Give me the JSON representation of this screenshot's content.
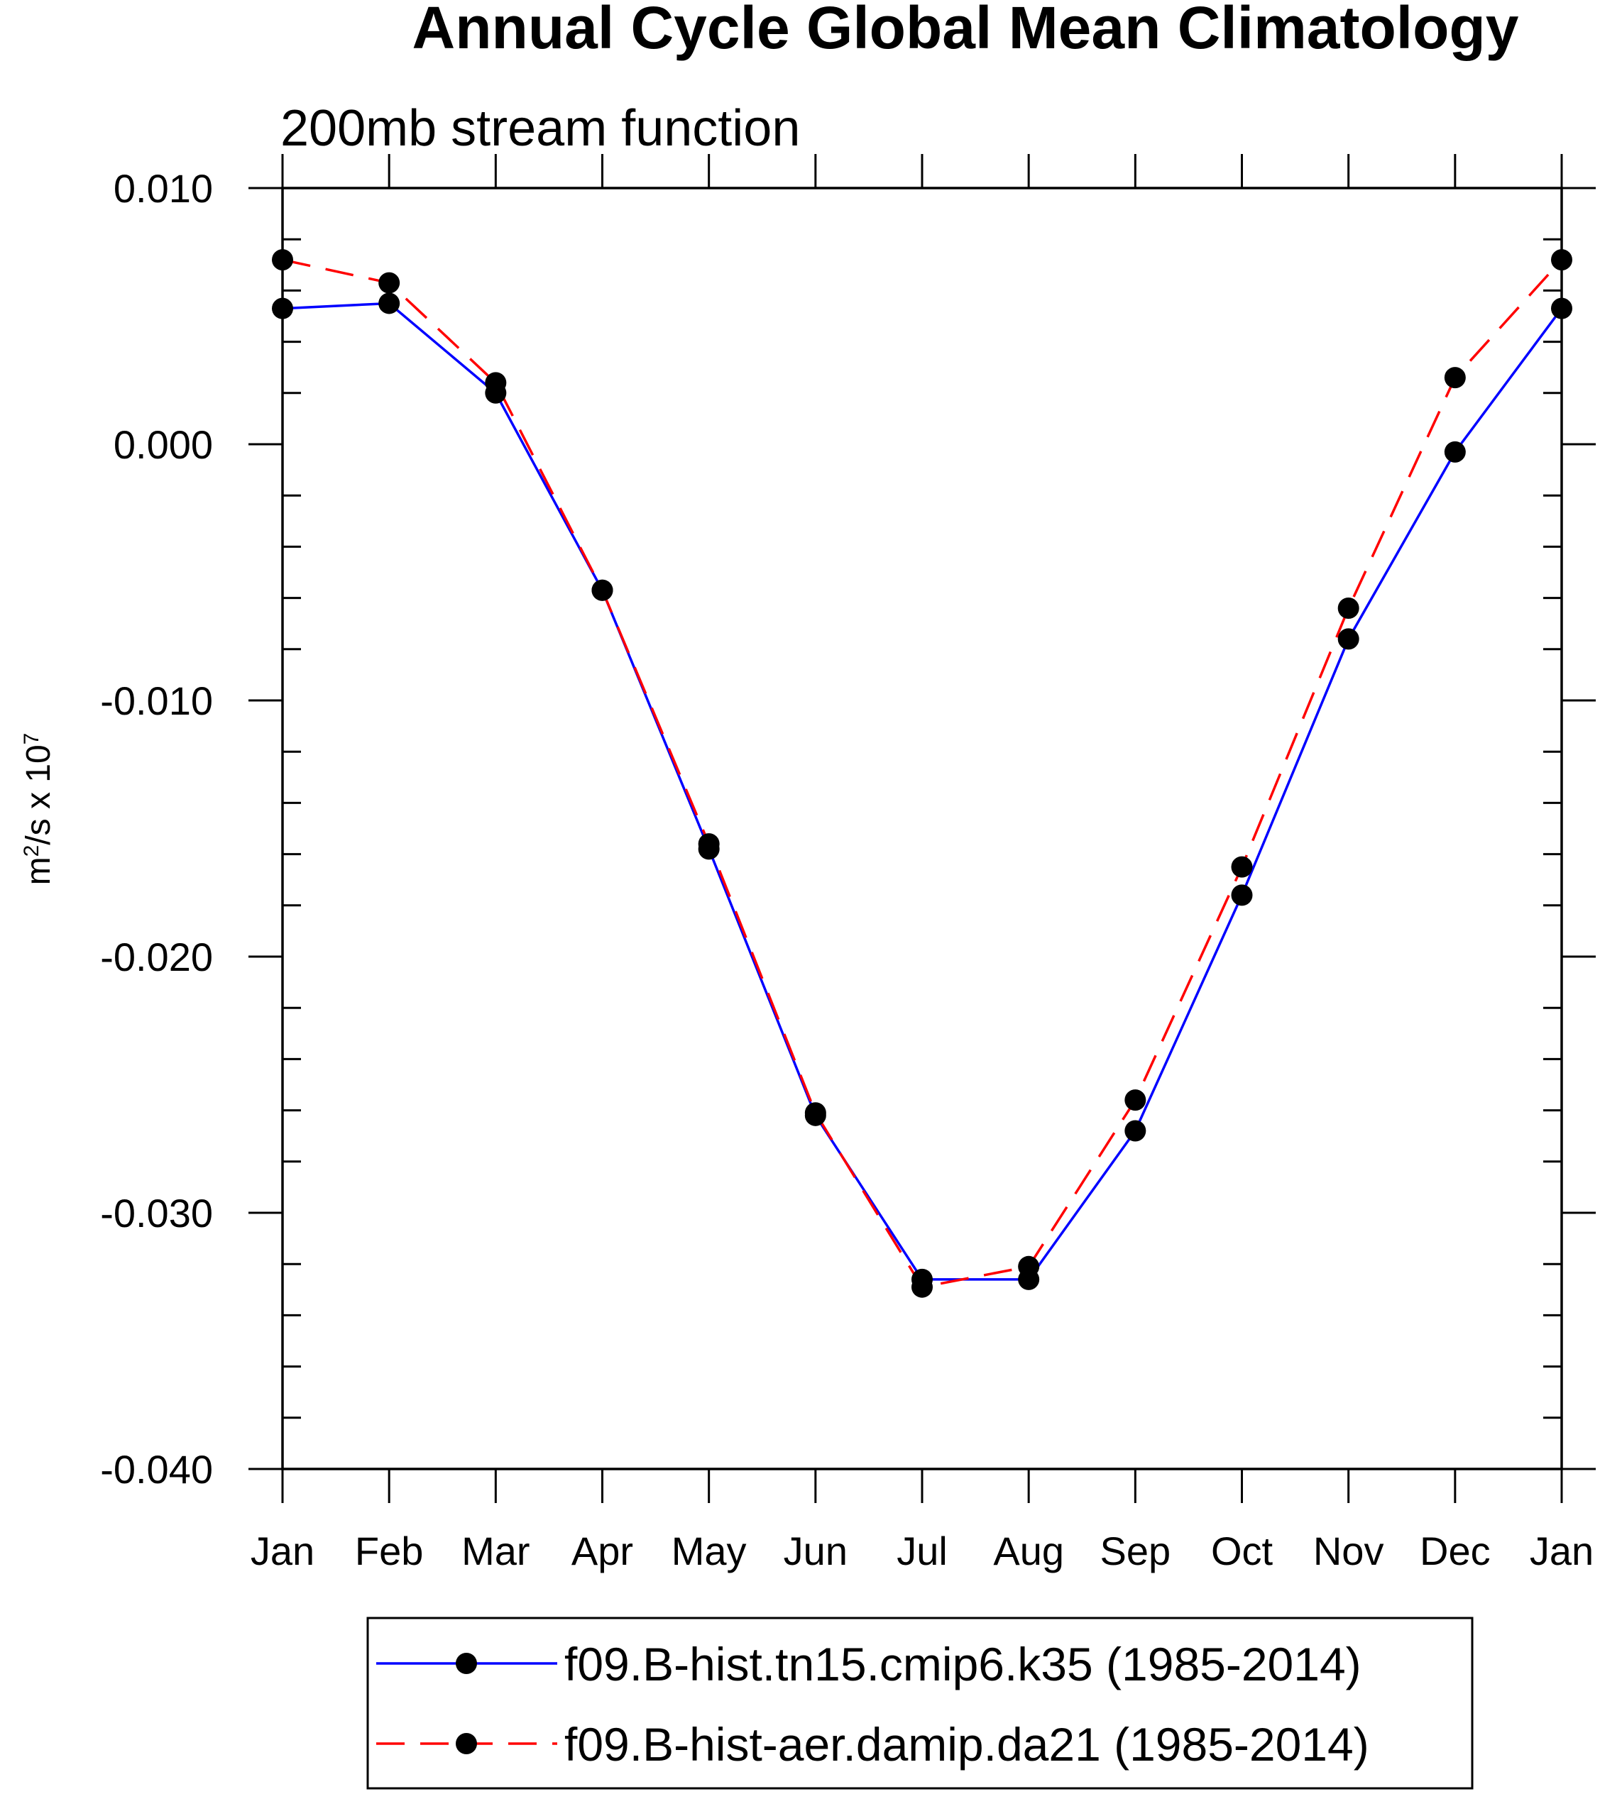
{
  "chart_data": {
    "type": "line",
    "title": "Annual Cycle Global Mean Climatology",
    "subtitle": "200mb stream function",
    "xlabel": "",
    "ylabel": {
      "base": "m",
      "sup1": "2",
      "mid": "/s x 10",
      "sup2": "7"
    },
    "categories": [
      "Jan",
      "Feb",
      "Mar",
      "Apr",
      "May",
      "Jun",
      "Jul",
      "Aug",
      "Sep",
      "Oct",
      "Nov",
      "Dec",
      "Jan"
    ],
    "ylim": [
      -0.04,
      0.01
    ],
    "yticks": [
      {
        "value": 0.01,
        "label": "0.010"
      },
      {
        "value": 0.0,
        "label": "0.000"
      },
      {
        "value": -0.01,
        "label": "-0.010"
      },
      {
        "value": -0.02,
        "label": "-0.020"
      },
      {
        "value": -0.03,
        "label": "-0.030"
      },
      {
        "value": -0.04,
        "label": "-0.040"
      }
    ],
    "yminor_step": 0.002,
    "grid": false,
    "legend_position": "bottom",
    "series": [
      {
        "name": "f09.B-hist.tn15.cmip6.k35 (1985-2014)",
        "color": "#0000ff",
        "dash": "solid",
        "values": [
          0.0053,
          0.0055,
          0.002,
          -0.0057,
          -0.0158,
          -0.0262,
          -0.0326,
          -0.0326,
          -0.0268,
          -0.0176,
          -0.0076,
          -0.0003,
          0.0053
        ]
      },
      {
        "name": "f09.B-hist-aer.damip.da21 (1985-2014)",
        "color": "#ff0000",
        "dash": "dashed",
        "values": [
          0.0072,
          0.0063,
          0.0024,
          -0.0057,
          -0.0156,
          -0.0261,
          -0.0329,
          -0.0321,
          -0.0256,
          -0.0165,
          -0.0064,
          0.0026,
          0.0072
        ]
      }
    ]
  }
}
